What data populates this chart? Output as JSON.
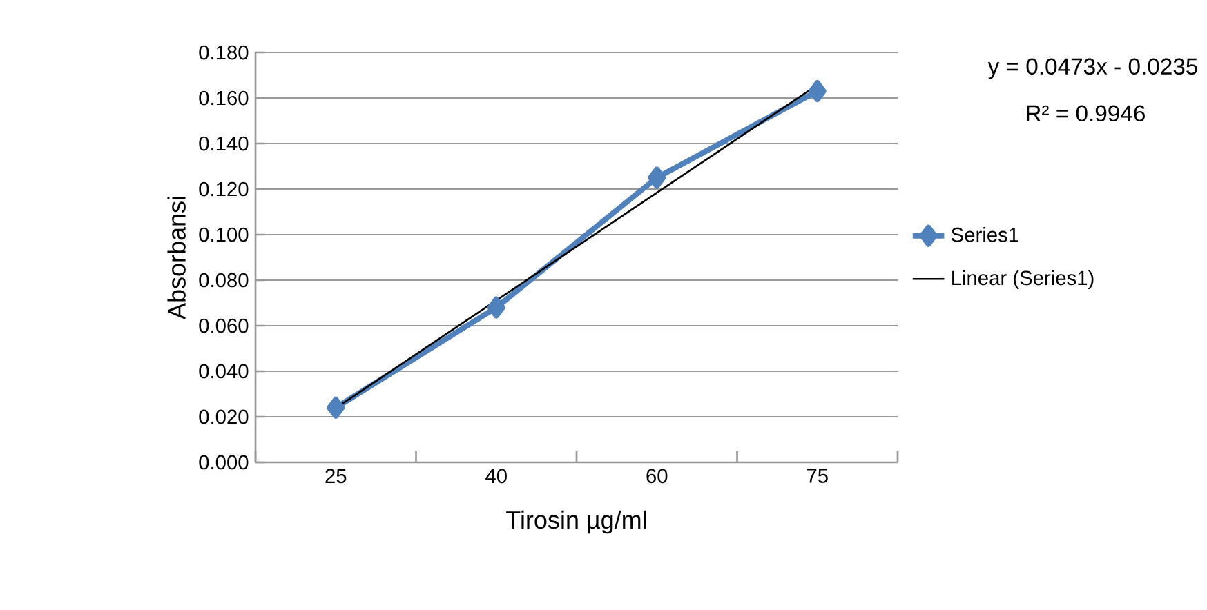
{
  "chart_data": {
    "type": "line",
    "xlabel": "Tirosin µg/ml",
    "ylabel": "Absorbansi",
    "categories": [
      "25",
      "40",
      "60",
      "75"
    ],
    "series": [
      {
        "name": "Series1",
        "color": "#4f81bd",
        "marker": "diamond",
        "values": [
          0.024,
          0.068,
          0.125,
          0.163
        ]
      },
      {
        "name": "Linear (Series1)",
        "color": "#000000",
        "marker": "none",
        "values": [
          0.0238,
          0.0711,
          0.1184,
          0.1657
        ]
      }
    ],
    "ylim": [
      0,
      0.18
    ],
    "yticks": [
      {
        "value": 0,
        "label": "0.000"
      },
      {
        "value": 0.02,
        "label": "0.020"
      },
      {
        "value": 0.04,
        "label": "0.040"
      },
      {
        "value": 0.06,
        "label": "0.060"
      },
      {
        "value": 0.08,
        "label": "0.080"
      },
      {
        "value": 0.1,
        "label": "0.100"
      },
      {
        "value": 0.12,
        "label": "0.120"
      },
      {
        "value": 0.14,
        "label": "0.140"
      },
      {
        "value": 0.16,
        "label": "0.160"
      },
      {
        "value": 0.18,
        "label": "0.180"
      }
    ],
    "grid": "y",
    "legend": "right",
    "annotations": [
      "y = 0.0473x - 0.0235",
      "R² = 0.9946"
    ]
  }
}
